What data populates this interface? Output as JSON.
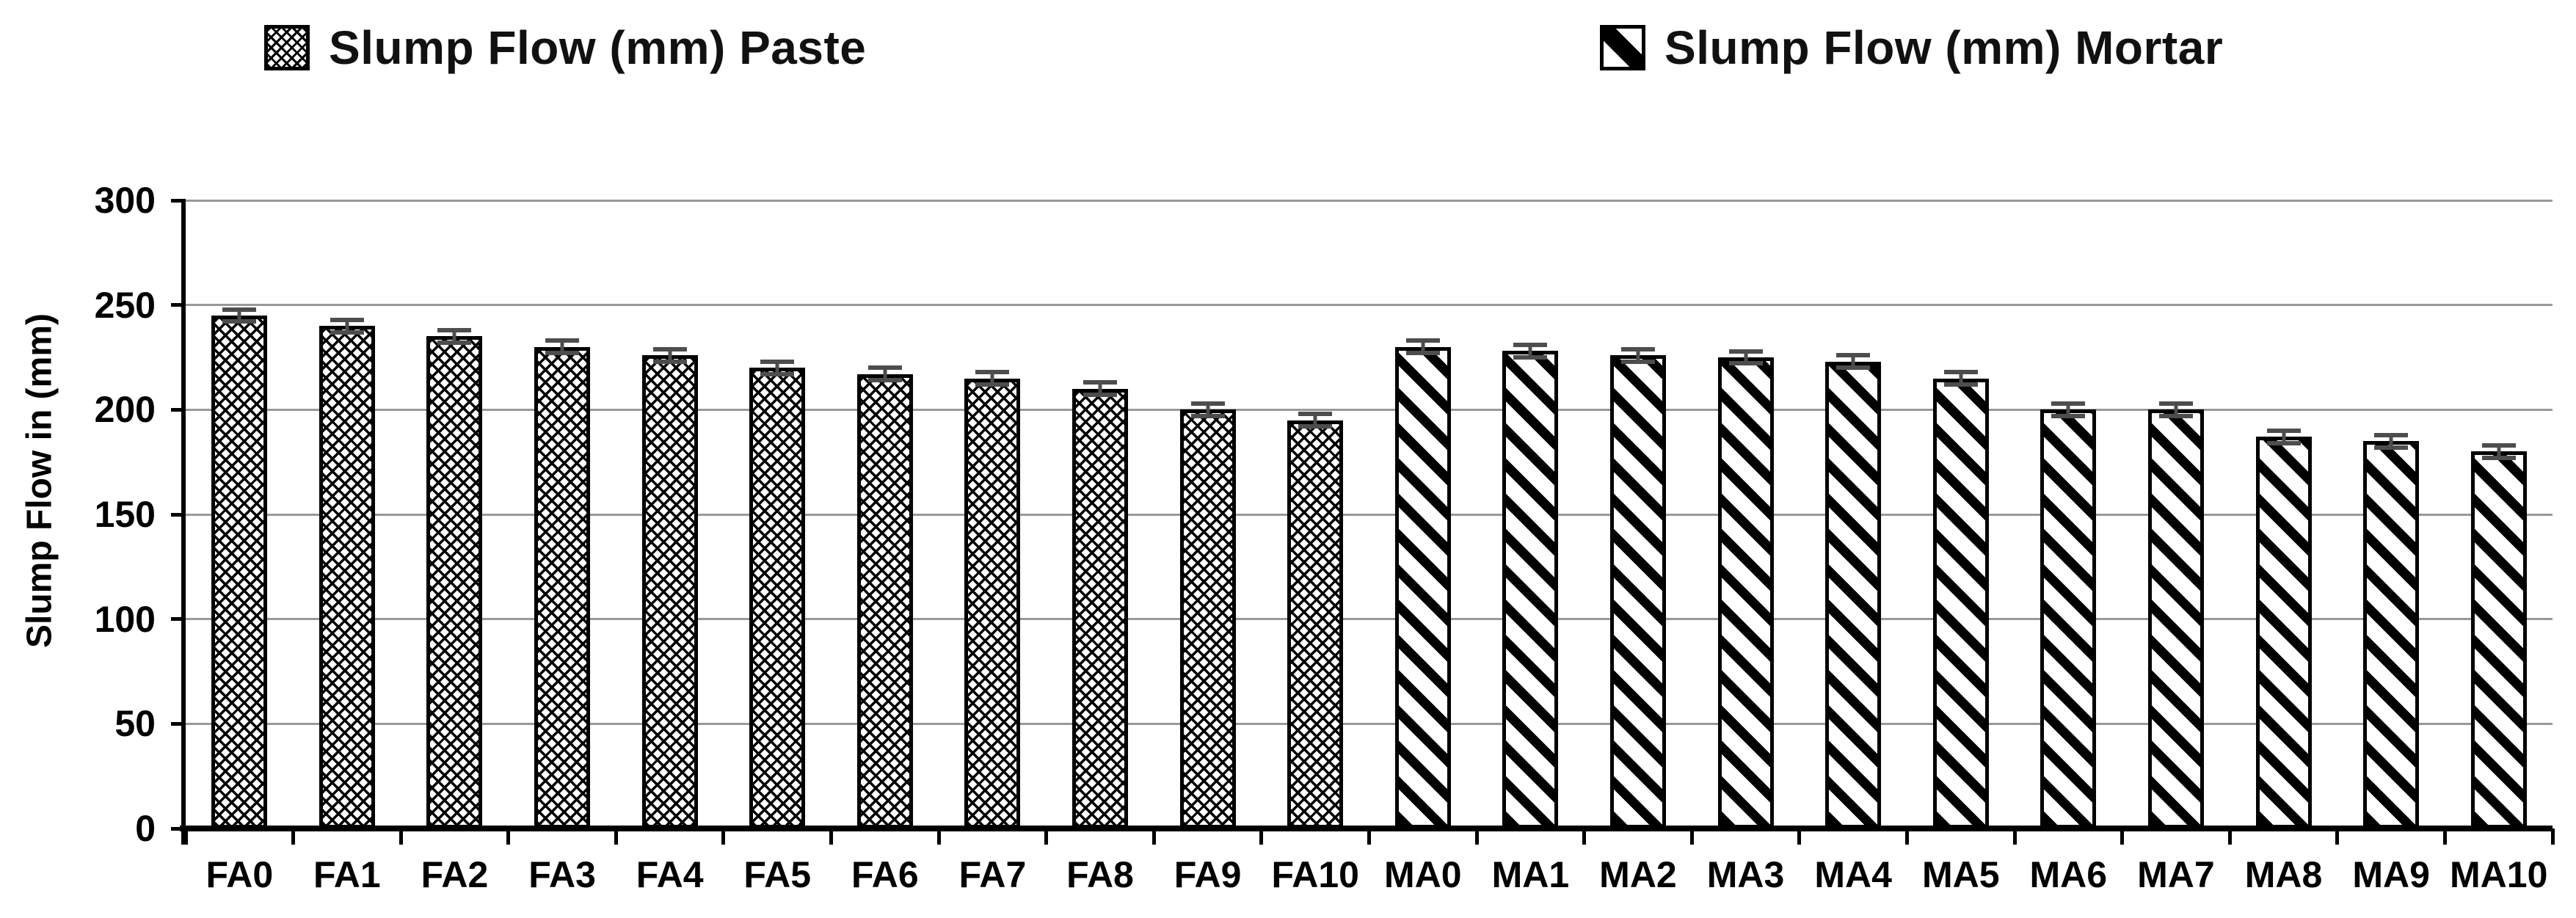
{
  "legend": {
    "paste": {
      "label": "Slump Flow (mm) Paste",
      "swatch_icon": "crosshatch-pattern"
    },
    "mortar": {
      "label": "Slump Flow (mm) Mortar",
      "swatch_icon": "diagonal-stripe-pattern"
    }
  },
  "chart_data": {
    "type": "bar",
    "title": "",
    "ylabel": "Slump Flow in (mm)",
    "xlabel": "",
    "ylim": [
      0,
      300
    ],
    "yticks": [
      0,
      50,
      100,
      150,
      200,
      250,
      300
    ],
    "grid": true,
    "legend_position": "top",
    "categories": [
      "FA0",
      "FA1",
      "FA2",
      "FA3",
      "FA4",
      "FA5",
      "FA6",
      "FA7",
      "FA8",
      "FA9",
      "FA10",
      "MA0",
      "MA1",
      "MA2",
      "MA3",
      "MA4",
      "MA5",
      "MA6",
      "MA7",
      "MA8",
      "MA9",
      "MA10"
    ],
    "series": [
      {
        "name": "Slump Flow (mm) Paste",
        "pattern": "crosshatch",
        "start_index": 0,
        "categories": [
          "FA0",
          "FA1",
          "FA2",
          "FA3",
          "FA4",
          "FA5",
          "FA6",
          "FA7",
          "FA8",
          "FA9",
          "FA10"
        ],
        "values": [
          245,
          240,
          235,
          230,
          226,
          220,
          217,
          215,
          210,
          200,
          195
        ],
        "error_bar": 4
      },
      {
        "name": "Slump Flow (mm) Mortar",
        "pattern": "diagonal-stripes",
        "start_index": 11,
        "categories": [
          "MA0",
          "MA1",
          "MA2",
          "MA3",
          "MA4",
          "MA5",
          "MA6",
          "MA7",
          "MA8",
          "MA9",
          "MA10"
        ],
        "values": [
          230,
          228,
          226,
          225,
          223,
          215,
          200,
          200,
          187,
          185,
          180
        ],
        "error_bar": 4
      }
    ]
  },
  "colors": {
    "background": "#ffffff",
    "bar_fill": "#ffffff",
    "bar_border": "#000000",
    "axis": "#000000",
    "gridline": "#999999",
    "error_bar": "#4d4d4d",
    "text": "#000000"
  }
}
